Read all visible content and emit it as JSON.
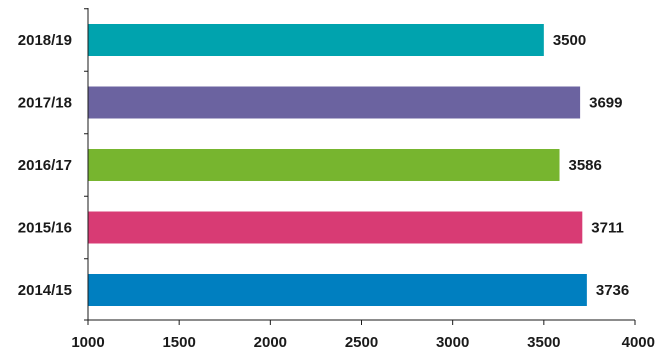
{
  "chart_data": {
    "type": "bar",
    "orientation": "horizontal",
    "categories": [
      "2018/19",
      "2017/18",
      "2016/17",
      "2015/16",
      "2014/15"
    ],
    "values": [
      3500,
      3699,
      3586,
      3711,
      3736
    ],
    "value_labels": [
      "3500",
      "3699",
      "3586",
      "3711",
      "3736"
    ],
    "colors": [
      "#00A3AE",
      "#6B63A0",
      "#77B52F",
      "#D83B74",
      "#007FC0"
    ],
    "xlim": [
      1000,
      4000
    ],
    "xticks": [
      1000,
      1500,
      2000,
      2500,
      3000,
      3500,
      4000
    ],
    "xtick_labels": [
      "1000",
      "1500",
      "2000",
      "2500",
      "3000",
      "3500",
      "4000"
    ],
    "title": "",
    "xlabel": "",
    "ylabel": "",
    "grid": false,
    "legend": "none"
  }
}
